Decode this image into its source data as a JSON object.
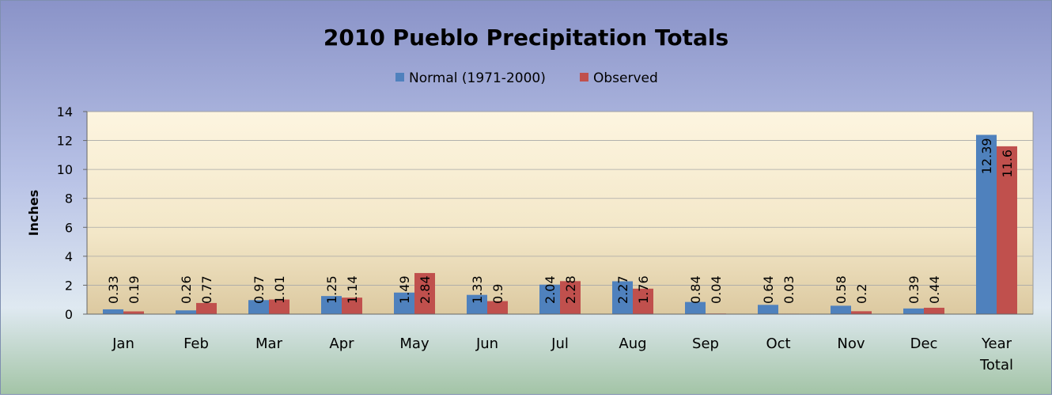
{
  "chart_data": {
    "type": "bar",
    "title": "2010 Pueblo Precipitation Totals",
    "xlabel": "",
    "ylabel": "Inches",
    "ylim": [
      0,
      14
    ],
    "yticks": [
      0,
      2,
      4,
      6,
      8,
      10,
      12,
      14
    ],
    "grid": true,
    "legend_position": "top",
    "categories": [
      "Jan",
      "Feb",
      "Mar",
      "Apr",
      "May",
      "Jun",
      "Jul",
      "Aug",
      "Sep",
      "Oct",
      "Nov",
      "Dec",
      "Year Total"
    ],
    "series": [
      {
        "name": "Normal (1971-2000)",
        "color": "#4f81bd",
        "values": [
          0.33,
          0.26,
          0.97,
          1.25,
          1.49,
          1.33,
          2.04,
          2.27,
          0.84,
          0.64,
          0.58,
          0.39,
          12.39
        ]
      },
      {
        "name": "Observed",
        "color": "#c0504d",
        "values": [
          0.19,
          0.77,
          1.01,
          1.14,
          2.84,
          0.9,
          2.28,
          1.76,
          0.04,
          0.03,
          0.2,
          0.44,
          11.6
        ]
      }
    ]
  }
}
